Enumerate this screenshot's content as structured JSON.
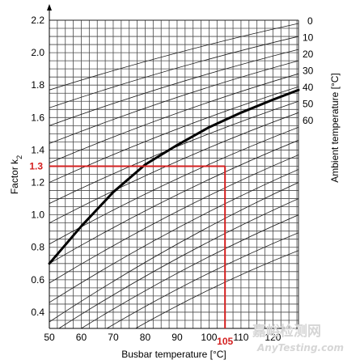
{
  "chart_data": {
    "type": "line",
    "xlabel": "Busbar temperature [°C]",
    "ylabel": "Factor k",
    "ylabel_sub": "2",
    "right_label": "Ambient temperature [°C]",
    "xlim": [
      50,
      128
    ],
    "ylim": [
      0.3,
      2.2
    ],
    "x_ticks": [
      50,
      60,
      70,
      80,
      90,
      100,
      110,
      120
    ],
    "y_ticks": [
      0.4,
      0.6,
      0.8,
      1.0,
      1.2,
      1.4,
      1.6,
      1.8,
      2.0,
      2.2
    ],
    "grid": true,
    "ambient_labels": [
      "0",
      "10",
      "20",
      "30",
      "40",
      "50",
      "60"
    ],
    "thin_curves": [
      {
        "x": [
          50,
          128
        ],
        "y": [
          1.77,
          2.18
        ]
      },
      {
        "x": [
          50,
          128
        ],
        "y": [
          1.66,
          2.1
        ]
      },
      {
        "x": [
          50,
          128
        ],
        "y": [
          1.55,
          2.02
        ]
      },
      {
        "x": [
          50,
          128
        ],
        "y": [
          1.44,
          1.95
        ]
      },
      {
        "x": [
          50,
          128
        ],
        "y": [
          1.32,
          1.87
        ]
      },
      {
        "x": [
          50,
          128
        ],
        "y": [
          1.2,
          1.79
        ]
      },
      {
        "x": [
          50,
          128
        ],
        "y": [
          1.07,
          1.7
        ]
      },
      {
        "x": [
          50,
          128
        ],
        "y": [
          0.95,
          1.63
        ]
      },
      {
        "x": [
          50,
          128
        ],
        "y": [
          0.82,
          1.54
        ]
      },
      {
        "x": [
          50,
          128
        ],
        "y": [
          0.7,
          1.46
        ]
      },
      {
        "x": [
          50,
          128
        ],
        "y": [
          0.58,
          1.37
        ]
      },
      {
        "x": [
          50,
          128
        ],
        "y": [
          0.46,
          1.28
        ]
      },
      {
        "x": [
          50,
          128
        ],
        "y": [
          0.34,
          1.2
        ]
      },
      {
        "x": [
          53,
          128
        ],
        "y": [
          0.3,
          1.1
        ]
      },
      {
        "x": [
          60,
          128
        ],
        "y": [
          0.3,
          1.0
        ]
      },
      {
        "x": [
          68,
          128
        ],
        "y": [
          0.3,
          0.89
        ]
      },
      {
        "x": [
          77,
          128
        ],
        "y": [
          0.3,
          0.78
        ]
      }
    ],
    "highlight_curve": {
      "name": "40",
      "x": [
        50,
        60,
        70,
        80,
        90,
        100,
        110,
        120,
        128
      ],
      "y": [
        0.7,
        0.93,
        1.14,
        1.31,
        1.43,
        1.54,
        1.63,
        1.71,
        1.77
      ]
    },
    "annotation": {
      "x": 105,
      "y": 1.3,
      "x_label": "105",
      "y_label": "1.3",
      "color": "#d42020"
    },
    "watermark": {
      "line1": "嘉峪检测网",
      "line2": "AnyTesting.com"
    }
  }
}
